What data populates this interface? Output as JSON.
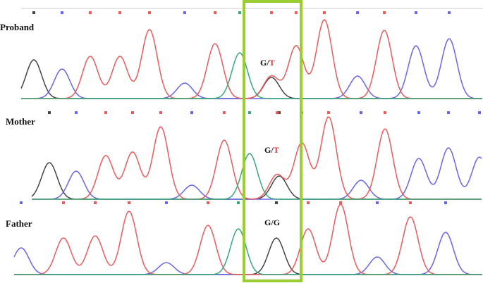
{
  "panels": [
    {
      "label": "Proband",
      "genotype": [
        "G",
        "/",
        "T"
      ]
    },
    {
      "label": "Mother",
      "genotype": [
        "G",
        "/",
        "T"
      ]
    },
    {
      "label": "Father",
      "genotype": [
        "G",
        "/",
        "G"
      ]
    }
  ]
}
